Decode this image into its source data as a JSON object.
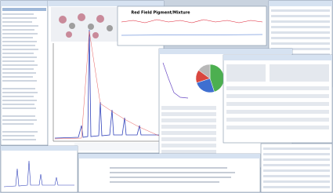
{
  "plot_window": {
    "title": "Red Field Pigment/Mixture"
  },
  "pie_chart": {
    "type": "pie",
    "values": [
      45,
      25,
      15,
      15
    ],
    "colors": [
      "#4caf50",
      "#3f6fd0",
      "#d9473f",
      "#b8b8b8"
    ]
  }
}
